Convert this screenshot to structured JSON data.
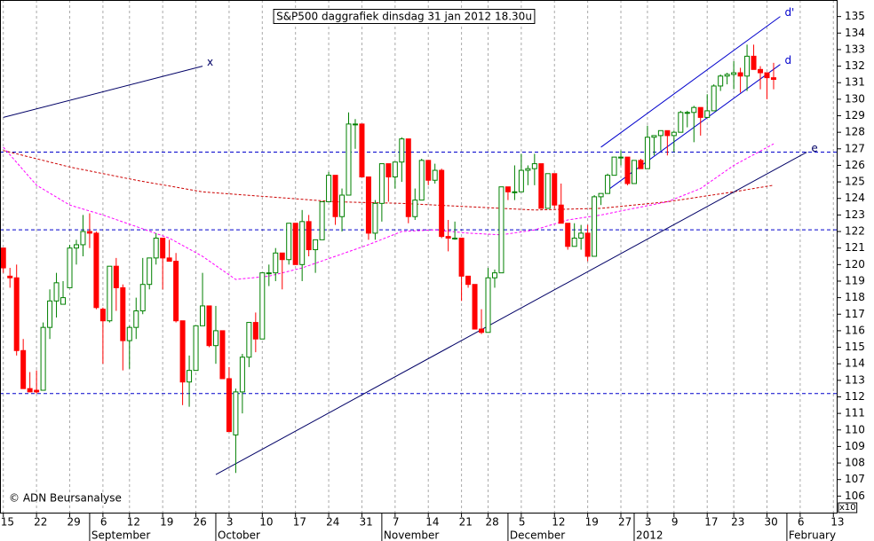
{
  "chart_data": {
    "type": "candlestick",
    "title": "S&P500 daggrafiek dinsdag 31 jan 2012 18.30u",
    "credit": "© ADN Beursanalyse",
    "axis_multiplier": "x10",
    "categories": [
      "15",
      null,
      null,
      null,
      null,
      "22",
      null,
      null,
      null,
      null,
      "29",
      null,
      null,
      null,
      null,
      "6",
      null,
      null,
      null,
      "12",
      null,
      null,
      null,
      null,
      "19",
      null,
      null,
      null,
      null,
      "26",
      null,
      null,
      null,
      null,
      "3",
      null,
      null,
      null,
      null,
      "10",
      null,
      null,
      null,
      null,
      "17",
      null,
      null,
      null,
      null,
      "24",
      null,
      null,
      null,
      null,
      "31",
      null,
      null,
      null,
      null,
      "7",
      null,
      null,
      null,
      null,
      "14",
      null,
      null,
      null,
      null,
      "21",
      null,
      null,
      null,
      "28",
      null,
      null,
      null,
      null,
      "5",
      null,
      null,
      null,
      null,
      "12",
      null,
      null,
      null,
      null,
      "19",
      null,
      null,
      null,
      null,
      "27",
      null,
      null,
      null,
      "3",
      null,
      null,
      null,
      "9",
      null,
      null,
      null,
      null,
      "17",
      null,
      null,
      null,
      "23",
      null,
      null,
      null,
      null,
      "30",
      null,
      null,
      null,
      null,
      "6",
      null,
      null,
      null,
      null,
      "13"
    ],
    "months": [
      "September",
      "October",
      "November",
      "December",
      "2012",
      "February"
    ],
    "open": [
      121,
      119.3,
      119.2,
      114.8,
      112.5,
      112.4,
      112.4,
      116.2,
      117.8,
      117.6,
      118.6,
      121.0,
      121.2,
      122.0,
      121.9,
      117.3,
      116.6,
      119.9,
      118.6,
      115.4,
      116.2,
      117.2,
      118.8,
      120.4,
      121.6,
      120.4,
      120.2,
      116.6,
      112.9,
      113.6,
      116.3,
      117.5,
      115.1,
      116.0,
      113.1,
      109.7,
      112.3,
      114.4,
      116.5,
      115.5,
      119.5,
      119.5,
      120.7,
      120.3,
      122.5,
      120.0,
      122.6,
      120.9,
      121.5,
      123.8,
      125.4,
      122.9,
      124.2,
      128.5,
      128.5,
      125.3,
      121.9,
      123.7,
      126.1,
      125.3,
      126.2,
      127.6,
      122.9,
      123.9,
      126.3,
      125.1,
      125.7,
      121.7,
      121.6,
      121.6,
      119.3,
      118.8,
      116.1,
      115.9,
      119.2,
      119.5,
      124.7,
      124.4,
      124.4,
      125.7,
      125.8,
      126.1,
      123.4,
      125.5,
      123.6,
      122.5,
      121.1,
      121.6,
      121.9,
      120.5,
      124.1,
      124.3,
      125.4,
      126.5,
      126.5,
      124.9,
      126.3,
      125.8,
      127.7,
      127.8,
      128.1,
      127.8,
      128.0,
      129.2,
      129.2,
      129.5,
      128.9,
      129.3,
      130.8,
      131.4,
      131.5,
      131.6,
      131.4,
      132.6,
      131.8,
      131.6,
      131.3,
      null,
      null,
      null,
      null,
      null,
      null,
      null,
      null,
      null
    ],
    "high": [
      121,
      119.8,
      120,
      115.5,
      113.5,
      113.6,
      116.5,
      118.5,
      119.5,
      119,
      121.2,
      121.5,
      123,
      123.1,
      122,
      117.4,
      119.9,
      120.4,
      118.8,
      116.3,
      118.0,
      120.4,
      120.4,
      121.9,
      121.6,
      121.5,
      120.7,
      116.6,
      114.5,
      116.3,
      119.5,
      117.5,
      117.5,
      116.0,
      113.8,
      112.5,
      114.6,
      116.5,
      117.1,
      119.5,
      120.0,
      121.0,
      120.7,
      122.5,
      122.5,
      123.3,
      123.0,
      121.5,
      123.8,
      125.6,
      125.4,
      124.6,
      129.2,
      128.8,
      128.5,
      125.3,
      123.9,
      126.1,
      126.1,
      126.2,
      127.7,
      127.6,
      124.6,
      126.4,
      126.3,
      126.1,
      125.8,
      122.7,
      122.6,
      121.6,
      119.3,
      118.8,
      117.3,
      119.8,
      119.7,
      124.7,
      124.7,
      126.0,
      126.7,
      126.0,
      126.7,
      126.1,
      125.5,
      125.5,
      124.9,
      122.5,
      122.5,
      122.4,
      122.4,
      124.2,
      124.3,
      125.5,
      126.5,
      126.9,
      126.5,
      126.3,
      126.4,
      128.4,
      127.8,
      128.1,
      128.1,
      128.1,
      129.3,
      129.3,
      129.6,
      129.5,
      130.3,
      130.9,
      131.5,
      131.6,
      132.3,
      131.9,
      133.3,
      133.3,
      132.0,
      131.6,
      132.2,
      null,
      null,
      null,
      null,
      null,
      null,
      null,
      null,
      null
    ],
    "low": [
      119.5,
      118.6,
      114.5,
      112.5,
      112.3,
      112.2,
      112.4,
      115.5,
      116.8,
      117.6,
      118.6,
      120.0,
      120.5,
      121.0,
      117.3,
      114,
      116.5,
      117.2,
      113.6,
      113.7,
      115.5,
      117.0,
      118.5,
      120.0,
      118.5,
      120.2,
      116.5,
      111.5,
      111.4,
      113.6,
      116.3,
      115.0,
      114.0,
      113.1,
      109.9,
      107.4,
      111.0,
      113.8,
      114.7,
      115.5,
      118.7,
      119.0,
      118.5,
      120.0,
      120.0,
      119.0,
      120.5,
      119.5,
      121.5,
      123.8,
      122.4,
      122.0,
      124.2,
      127.0,
      125.3,
      121.5,
      121.5,
      122.6,
      123.8,
      124.6,
      125.0,
      122.5,
      122.7,
      123.9,
      124.8,
      124.9,
      121.6,
      120.8,
      121.5,
      117.8,
      118.6,
      116.1,
      115.8,
      115.9,
      118.6,
      119.5,
      123.9,
      123.9,
      124.4,
      124.8,
      124.8,
      123.4,
      123.4,
      123.4,
      122.5,
      120.9,
      121.1,
      120.9,
      120.2,
      120.5,
      123.6,
      124.3,
      125.4,
      126.0,
      124.8,
      124.9,
      125.8,
      125.8,
      126.6,
      126.9,
      126.6,
      126.8,
      128.0,
      128.3,
      127.4,
      127.8,
      128.9,
      129.3,
      130.5,
      130.9,
      130.6,
      130.4,
      130.5,
      131.8,
      130.6,
      130.0,
      130.6,
      null,
      null,
      null,
      null,
      null,
      null,
      null,
      null,
      null
    ],
    "close": [
      119.8,
      119.2,
      114.8,
      112.5,
      112.3,
      112.3,
      116.2,
      117.8,
      118.9,
      118.0,
      121.0,
      121.2,
      122.0,
      121.9,
      117.4,
      116.6,
      119.9,
      118.6,
      115.4,
      116.2,
      117.2,
      118.8,
      120.4,
      121.6,
      120.4,
      120.2,
      116.6,
      112.9,
      113.6,
      116.3,
      117.5,
      115.1,
      116.0,
      113.1,
      109.9,
      112.3,
      114.4,
      116.5,
      115.5,
      119.5,
      119.5,
      120.7,
      120.3,
      122.5,
      120.0,
      122.6,
      120.9,
      121.5,
      123.8,
      125.4,
      122.9,
      124.2,
      128.5,
      128.5,
      125.3,
      121.9,
      123.7,
      126.1,
      125.3,
      126.2,
      127.6,
      122.9,
      123.9,
      126.3,
      125.1,
      125.7,
      121.7,
      121.6,
      121.6,
      119.3,
      118.8,
      116.1,
      115.9,
      119.2,
      119.5,
      124.7,
      124.4,
      124.4,
      125.7,
      125.8,
      126.1,
      123.4,
      125.5,
      123.6,
      122.5,
      121.1,
      121.6,
      121.9,
      120.5,
      124.1,
      124.3,
      125.4,
      126.5,
      126.5,
      124.9,
      126.3,
      125.8,
      127.7,
      127.8,
      128.1,
      127.8,
      128.0,
      129.2,
      129.2,
      129.5,
      128.9,
      129.3,
      130.8,
      131.4,
      131.5,
      131.6,
      131.4,
      132.6,
      131.8,
      131.6,
      131.3,
      131.2,
      null,
      null,
      null,
      null,
      null,
      null,
      null,
      null,
      null
    ],
    "up_color": "#008000",
    "down_color": "#ff0000",
    "moving_averages": [
      {
        "color": "#ff00ff",
        "x": [
          0,
          5,
          10,
          15,
          20,
          25,
          30,
          35,
          40,
          45,
          50,
          55,
          60,
          65,
          70,
          75,
          80,
          85,
          90,
          95,
          100,
          105,
          110,
          116
        ],
        "values": [
          127.1,
          124.8,
          123.6,
          123,
          122.3,
          121.6,
          120.5,
          119.1,
          119.3,
          119.8,
          120.5,
          121.2,
          122,
          122.1,
          121.9,
          121.8,
          122.1,
          122.7,
          123,
          123.4,
          123.8,
          124.6,
          126,
          127.3
        ]
      },
      {
        "color": "#cc0000",
        "x": [
          0,
          10,
          20,
          30,
          40,
          50,
          60,
          70,
          80,
          90,
          100,
          110,
          116
        ],
        "values": [
          126.9,
          125.9,
          125.1,
          124.4,
          124.1,
          123.8,
          123.7,
          123.5,
          123.3,
          123.4,
          123.8,
          124.4,
          124.8
        ]
      }
    ],
    "hlines": {
      "color": "#0000cc",
      "values": [
        126.8,
        122.1,
        112.2
      ]
    },
    "trendlines": [
      {
        "label": "x",
        "color": "#000066",
        "x": [
          0,
          30
        ],
        "y": [
          128.9,
          132.0
        ]
      },
      {
        "label": "e",
        "color": "#000066",
        "x": [
          32,
          121
        ],
        "y": [
          107.3,
          126.8
        ]
      },
      {
        "label": "d'",
        "color": "#0000cc",
        "x": [
          90,
          117
        ],
        "y": [
          127.1,
          135.0
        ]
      },
      {
        "label": "d",
        "color": "#0000cc",
        "x": [
          91,
          117
        ],
        "y": [
          124.5,
          132.1
        ]
      }
    ],
    "ylim": [
      105,
      136
    ],
    "yticks": [
      106,
      107,
      108,
      109,
      110,
      111,
      112,
      113,
      114,
      115,
      116,
      117,
      118,
      119,
      120,
      121,
      122,
      123,
      124,
      125,
      126,
      127,
      128,
      129,
      130,
      131,
      132,
      133,
      134,
      135
    ],
    "grid": true
  }
}
